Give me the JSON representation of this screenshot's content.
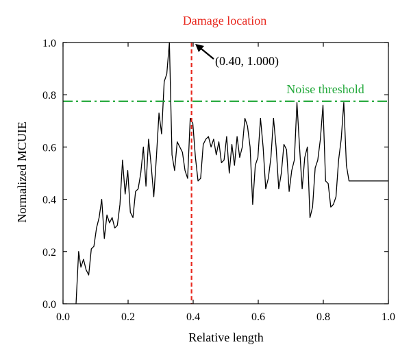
{
  "chart_data": {
    "type": "line",
    "title": "",
    "xlabel": "Relative length",
    "ylabel": "Normalized MCUIE",
    "xlim": [
      0.0,
      1.0
    ],
    "ylim": [
      0.0,
      1.0
    ],
    "xticks": [
      "0.0",
      "0.2",
      "0.4",
      "0.6",
      "0.8",
      "1.0"
    ],
    "yticks": [
      "0.0",
      "0.2",
      "0.4",
      "0.6",
      "0.8",
      "1.0"
    ],
    "grid": false,
    "legend": "none",
    "series": [
      {
        "color": "#000000",
        "x": [
          0.04,
          0.048,
          0.055,
          0.063,
          0.071,
          0.079,
          0.087,
          0.095,
          0.103,
          0.111,
          0.119,
          0.127,
          0.135,
          0.143,
          0.151,
          0.159,
          0.167,
          0.175,
          0.183,
          0.191,
          0.199,
          0.207,
          0.215,
          0.223,
          0.231,
          0.239,
          0.247,
          0.255,
          0.263,
          0.271,
          0.279,
          0.287,
          0.295,
          0.303,
          0.311,
          0.319,
          0.327,
          0.335,
          0.343,
          0.351,
          0.359,
          0.367,
          0.375,
          0.383,
          0.391,
          0.399,
          0.407,
          0.415,
          0.423,
          0.431,
          0.439,
          0.447,
          0.455,
          0.463,
          0.471,
          0.479,
          0.487,
          0.495,
          0.503,
          0.511,
          0.519,
          0.527,
          0.535,
          0.543,
          0.551,
          0.559,
          0.567,
          0.575,
          0.583,
          0.591,
          0.599,
          0.607,
          0.615,
          0.623,
          0.631,
          0.639,
          0.647,
          0.655,
          0.663,
          0.671,
          0.679,
          0.687,
          0.695,
          0.703,
          0.711,
          0.719,
          0.727,
          0.735,
          0.743,
          0.751,
          0.759,
          0.767,
          0.775,
          0.783,
          0.791,
          0.799,
          0.807,
          0.815,
          0.823,
          0.831,
          0.839,
          0.847,
          0.855,
          0.863,
          0.871,
          0.879,
          0.887,
          0.895,
          0.903,
          0.911,
          0.919,
          0.927,
          0.935,
          0.943,
          0.951,
          0.959,
          0.967,
          0.975,
          0.983,
          0.991,
          1.0
        ],
        "y": [
          0.0,
          0.2,
          0.14,
          0.17,
          0.13,
          0.11,
          0.21,
          0.22,
          0.29,
          0.33,
          0.4,
          0.25,
          0.34,
          0.31,
          0.33,
          0.29,
          0.3,
          0.38,
          0.55,
          0.42,
          0.51,
          0.35,
          0.33,
          0.43,
          0.44,
          0.5,
          0.6,
          0.45,
          0.63,
          0.53,
          0.41,
          0.56,
          0.73,
          0.65,
          0.85,
          0.88,
          1.0,
          0.57,
          0.51,
          0.62,
          0.6,
          0.58,
          0.51,
          0.48,
          0.71,
          0.69,
          0.56,
          0.47,
          0.48,
          0.61,
          0.63,
          0.64,
          0.6,
          0.63,
          0.57,
          0.62,
          0.54,
          0.55,
          0.64,
          0.5,
          0.61,
          0.53,
          0.64,
          0.56,
          0.6,
          0.71,
          0.68,
          0.6,
          0.38,
          0.53,
          0.56,
          0.71,
          0.6,
          0.44,
          0.48,
          0.56,
          0.71,
          0.6,
          0.44,
          0.5,
          0.61,
          0.59,
          0.43,
          0.51,
          0.55,
          0.77,
          0.6,
          0.44,
          0.56,
          0.6,
          0.33,
          0.37,
          0.52,
          0.55,
          0.63,
          0.76,
          0.47,
          0.46,
          0.37,
          0.38,
          0.41,
          0.55,
          0.63,
          0.77,
          0.53,
          0.47,
          0.47,
          0.47,
          0.47,
          0.47,
          0.47,
          0.47,
          0.47,
          0.47,
          0.47,
          0.47,
          0.47,
          0.47,
          0.47,
          0.47,
          0.47
        ]
      }
    ],
    "reference_lines": {
      "threshold": {
        "y": 0.775,
        "label": "Noise threshold",
        "color": "#22a83a",
        "style": "dash-dot"
      },
      "damage": {
        "x": 0.395,
        "label": "Damage location",
        "color": "#e8281e",
        "style": "dashed"
      }
    },
    "annotations": [
      {
        "text": "(0.40, 1.000)",
        "x": 0.4,
        "y": 1.0
      }
    ]
  }
}
